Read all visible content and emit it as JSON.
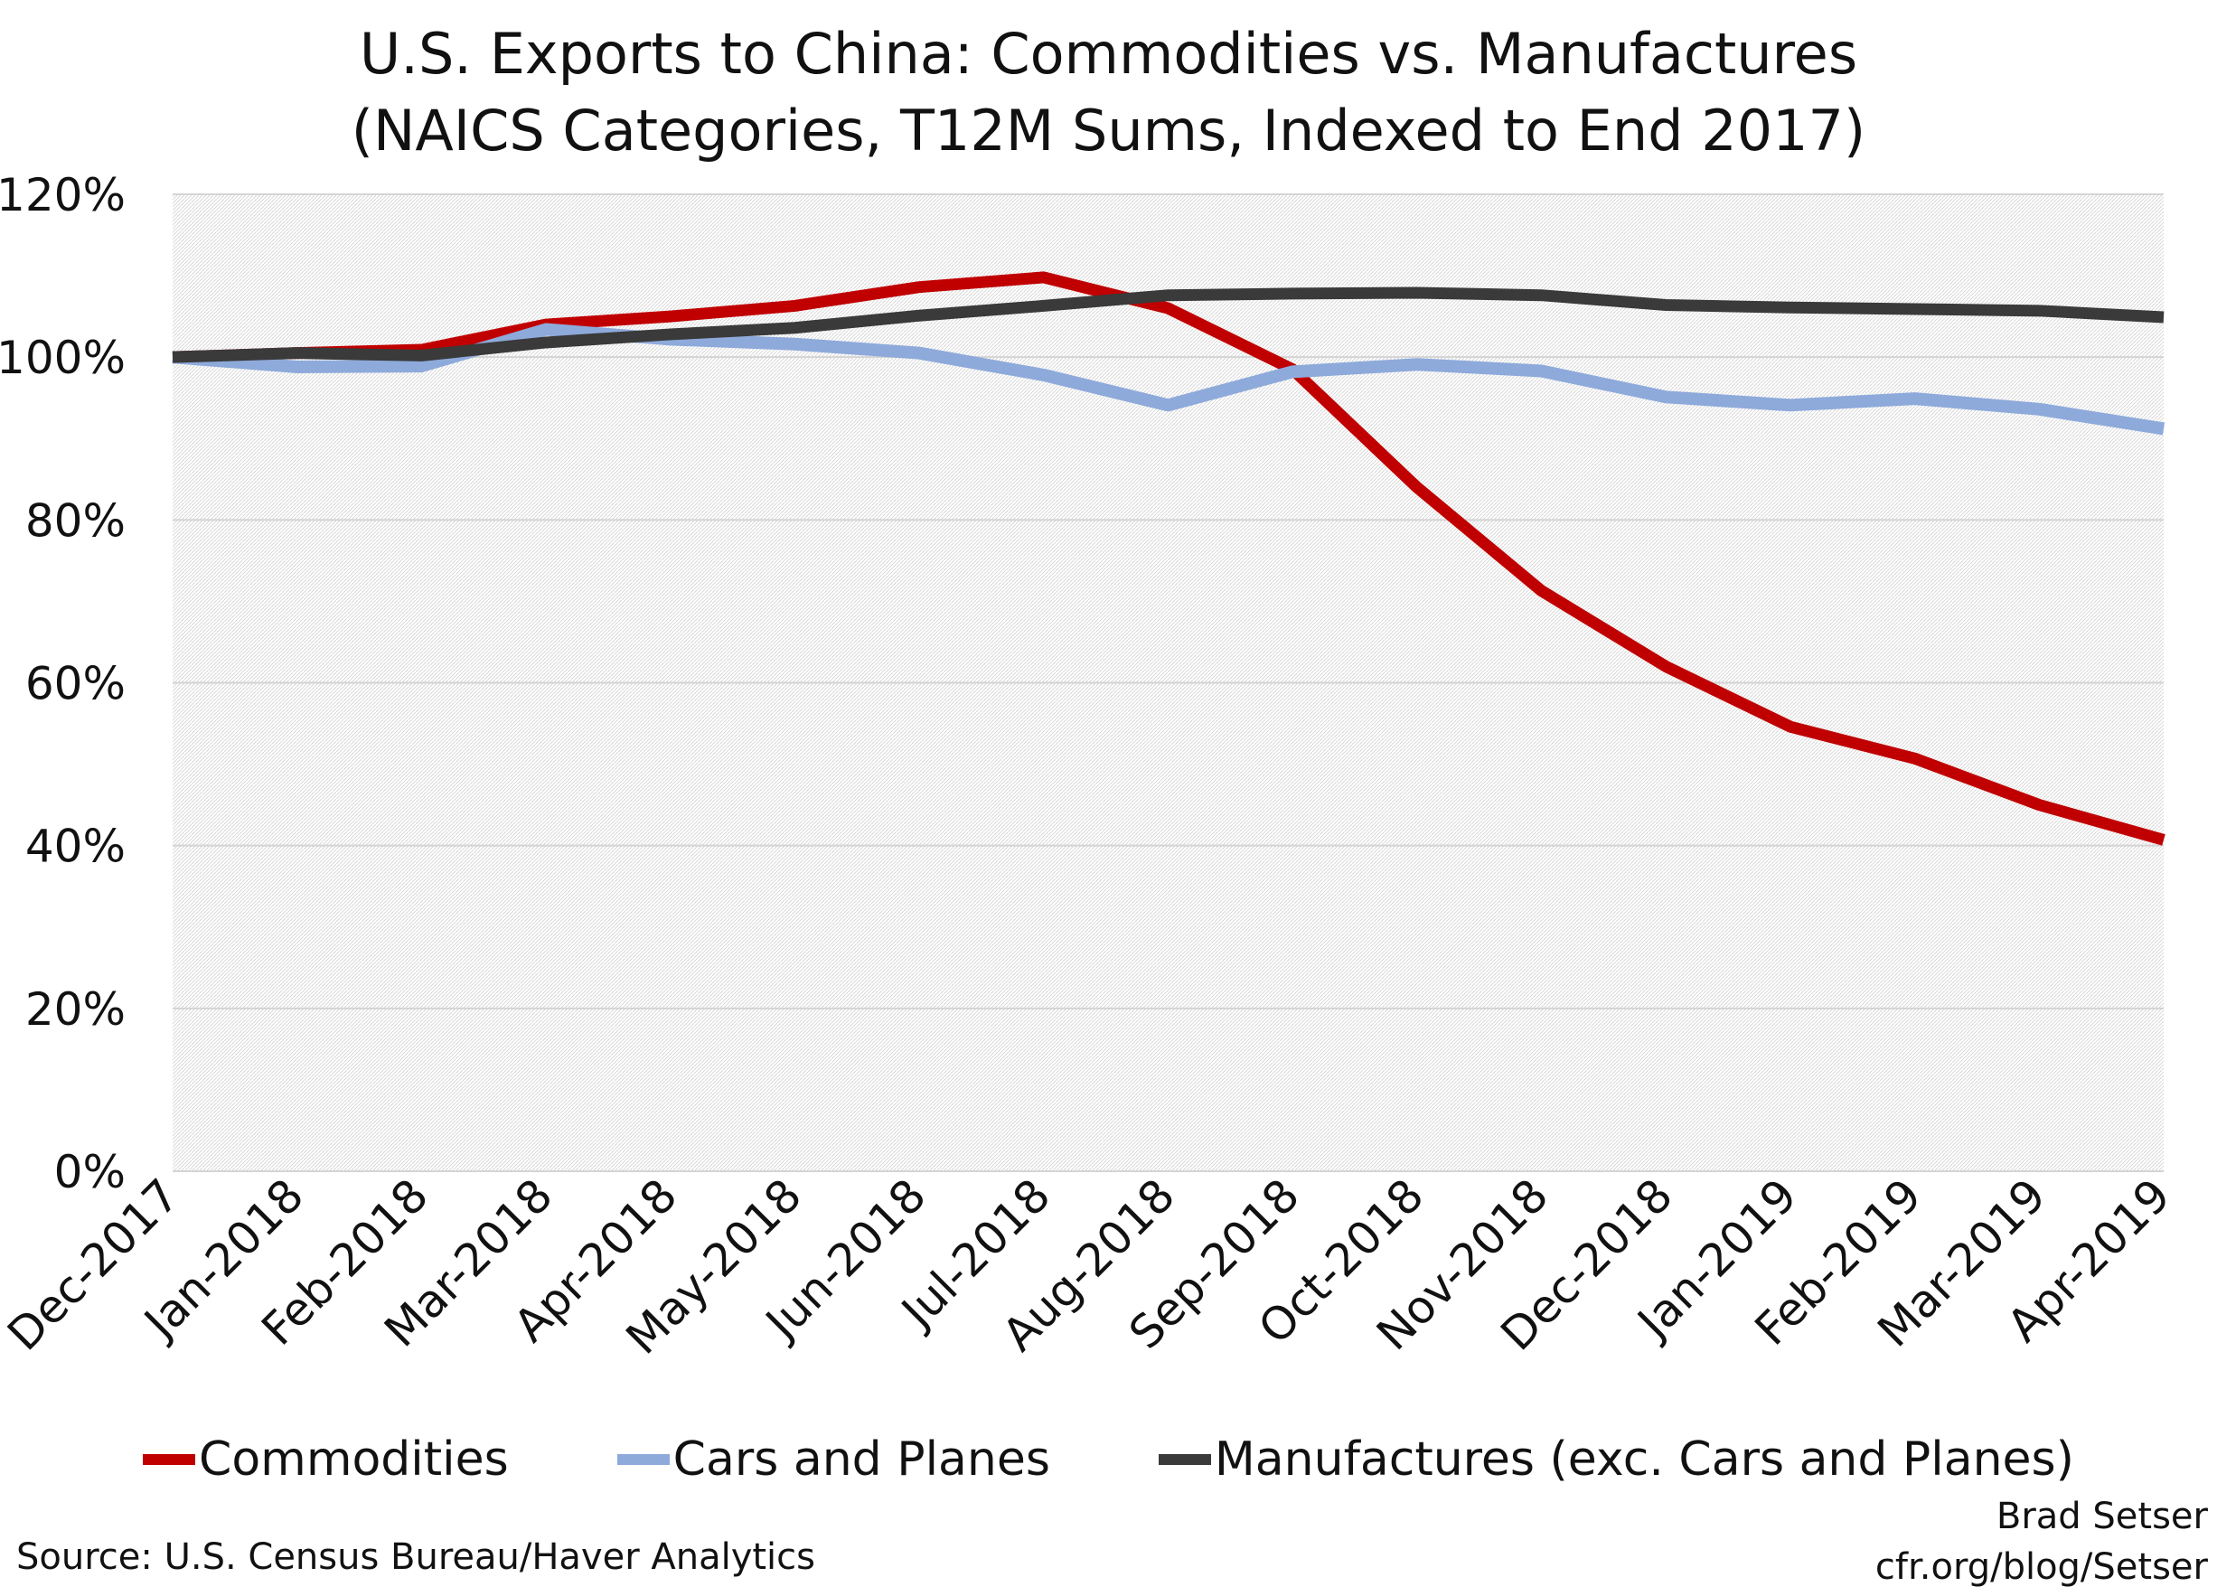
{
  "chart_data": {
    "type": "line",
    "title": "U.S. Exports to China: Commodities vs. Manufactures",
    "subtitle": "(NAICS Categories, T12M Sums, Indexed to End 2017)",
    "xlabel": "",
    "ylabel": "",
    "ylim": [
      0,
      120
    ],
    "yticks": [
      "0%",
      "20%",
      "40%",
      "60%",
      "80%",
      "100%",
      "120%"
    ],
    "ytick_values": [
      0,
      20,
      40,
      60,
      80,
      100,
      120
    ],
    "grid": true,
    "legend_position": "bottom",
    "categories": [
      "Dec-2017",
      "Jan-2018",
      "Feb-2018",
      "Mar-2018",
      "Apr-2018",
      "May-2018",
      "Jun-2018",
      "Jul-2018",
      "Aug-2018",
      "Sep-2018",
      "Oct-2018",
      "Nov-2018",
      "Dec-2018",
      "Jan-2019",
      "Feb-2019",
      "Mar-2019",
      "Apr-2019"
    ],
    "series": [
      {
        "name": "Commodities",
        "color": "#c00000",
        "values": [
          100,
          100.5,
          100.9,
          104,
          105,
          106.3,
          108.6,
          109.8,
          106,
          98.5,
          84,
          71.3,
          62,
          54.6,
          50.7,
          45,
          40.7
        ]
      },
      {
        "name": "Cars and Planes",
        "color": "#8eaadb",
        "values": [
          100,
          98.8,
          98.9,
          103.4,
          102.2,
          101.6,
          100.5,
          97.8,
          94.1,
          98.2,
          99.1,
          98.3,
          95.1,
          94.1,
          94.9,
          93.6,
          91.2
        ]
      },
      {
        "name": "Manufactures (exc. Cars and Planes)",
        "color": "#3a3a3a",
        "values": [
          100,
          100.5,
          100.2,
          101.8,
          102.8,
          103.6,
          105.1,
          106.3,
          107.6,
          107.8,
          107.9,
          107.6,
          106.4,
          106.1,
          105.9,
          105.7,
          104.9
        ]
      }
    ]
  },
  "source": "Source: U.S. Census Bureau/Haver Analytics",
  "credit": {
    "author": "Brad Setser",
    "site": "cfr.org/blog/Setser"
  }
}
